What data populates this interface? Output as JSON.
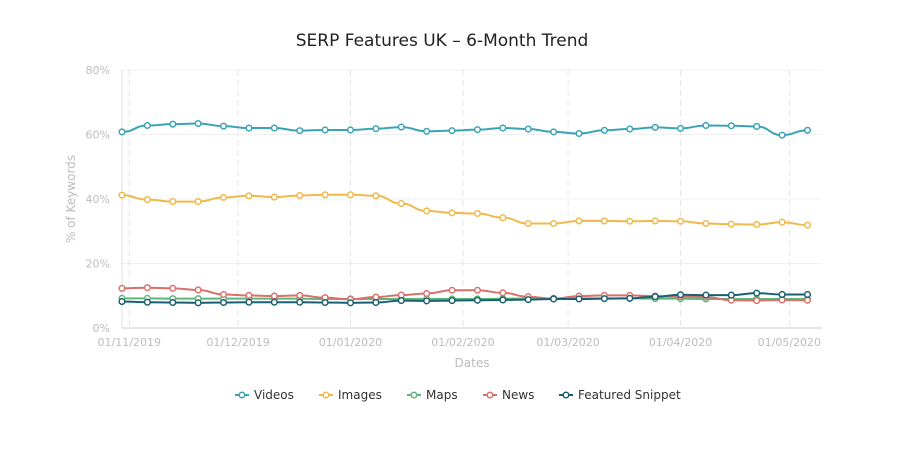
{
  "chart_data": {
    "type": "line",
    "title": "SERP Features UK – 6-Month Trend",
    "xlabel": "Dates",
    "ylabel": "% of Keywords",
    "ylim": [
      0,
      80
    ],
    "y_ticks": [
      "0%",
      "20%",
      "40%",
      "60%",
      "80%"
    ],
    "y_tick_values": [
      0,
      20,
      40,
      60,
      80
    ],
    "x_tick_labels": [
      "01/11/2019",
      "01/12/2019",
      "01/01/2020",
      "01/02/2020",
      "01/03/2020",
      "01/04/2020",
      "01/05/2020"
    ],
    "x_tick_dates": [
      "2019-11-01",
      "2019-12-01",
      "2020-01-01",
      "2020-02-01",
      "2020-03-01",
      "2020-04-01",
      "2020-05-01"
    ],
    "x_range": [
      "2019-10-30",
      "2020-05-10"
    ],
    "grid": true,
    "legend_position": "bottom-center",
    "x": [
      "2019-10-30",
      "2019-11-06",
      "2019-11-13",
      "2019-11-20",
      "2019-11-27",
      "2019-12-04",
      "2019-12-11",
      "2019-12-18",
      "2019-12-25",
      "2020-01-01",
      "2020-01-08",
      "2020-01-15",
      "2020-01-22",
      "2020-01-29",
      "2020-02-05",
      "2020-02-12",
      "2020-02-19",
      "2020-02-26",
      "2020-03-04",
      "2020-03-11",
      "2020-03-18",
      "2020-03-25",
      "2020-04-01",
      "2020-04-08",
      "2020-04-15",
      "2020-04-22",
      "2020-04-29",
      "2020-05-06"
    ],
    "series": [
      {
        "name": "Videos",
        "color": "#3ba3b8",
        "values": [
          60.8,
          62.8,
          63.2,
          63.4,
          62.6,
          62.0,
          62.0,
          61.2,
          61.4,
          61.4,
          61.8,
          62.3,
          61.0,
          61.2,
          61.5,
          62.0,
          61.7,
          60.8,
          60.3,
          61.3,
          61.7,
          62.2,
          61.9,
          62.8,
          62.7,
          62.5,
          59.8,
          61.3
        ]
      },
      {
        "name": "Images",
        "color": "#f0b94c",
        "values": [
          41.2,
          39.8,
          39.2,
          39.2,
          40.5,
          41.0,
          40.6,
          41.1,
          41.3,
          41.3,
          41.0,
          38.6,
          36.3,
          35.7,
          35.5,
          34.2,
          32.4,
          32.4,
          33.2,
          33.2,
          33.1,
          33.2,
          33.1,
          32.4,
          32.2,
          32.1,
          32.8,
          31.9
        ]
      },
      {
        "name": "Maps",
        "color": "#5cb878",
        "values": [
          9.2,
          9.2,
          9.1,
          9.1,
          9.1,
          9.1,
          9.1,
          9.1,
          9.0,
          9.0,
          9.0,
          9.0,
          9.0,
          9.0,
          9.0,
          9.1,
          9.1,
          9.2,
          9.2,
          9.2,
          9.2,
          9.1,
          9.1,
          9.0,
          9.0,
          9.0,
          9.0,
          9.0
        ]
      },
      {
        "name": "News",
        "color": "#d9706c",
        "values": [
          12.3,
          12.5,
          12.3,
          11.8,
          10.4,
          10.1,
          9.9,
          10.1,
          9.4,
          8.9,
          9.6,
          10.2,
          10.7,
          11.7,
          11.7,
          10.9,
          9.7,
          9.1,
          9.9,
          10.1,
          10.1,
          9.9,
          9.7,
          9.6,
          8.6,
          8.5,
          8.7,
          8.6
        ]
      },
      {
        "name": "Featured Snippet",
        "color": "#1b5f73",
        "values": [
          8.2,
          8.0,
          7.9,
          7.8,
          7.9,
          8.0,
          8.0,
          8.0,
          7.9,
          7.8,
          7.9,
          8.5,
          8.4,
          8.5,
          8.6,
          8.7,
          8.8,
          9.0,
          9.0,
          9.1,
          9.2,
          9.7,
          10.3,
          10.2,
          10.2,
          10.8,
          10.4,
          10.4
        ]
      }
    ]
  }
}
